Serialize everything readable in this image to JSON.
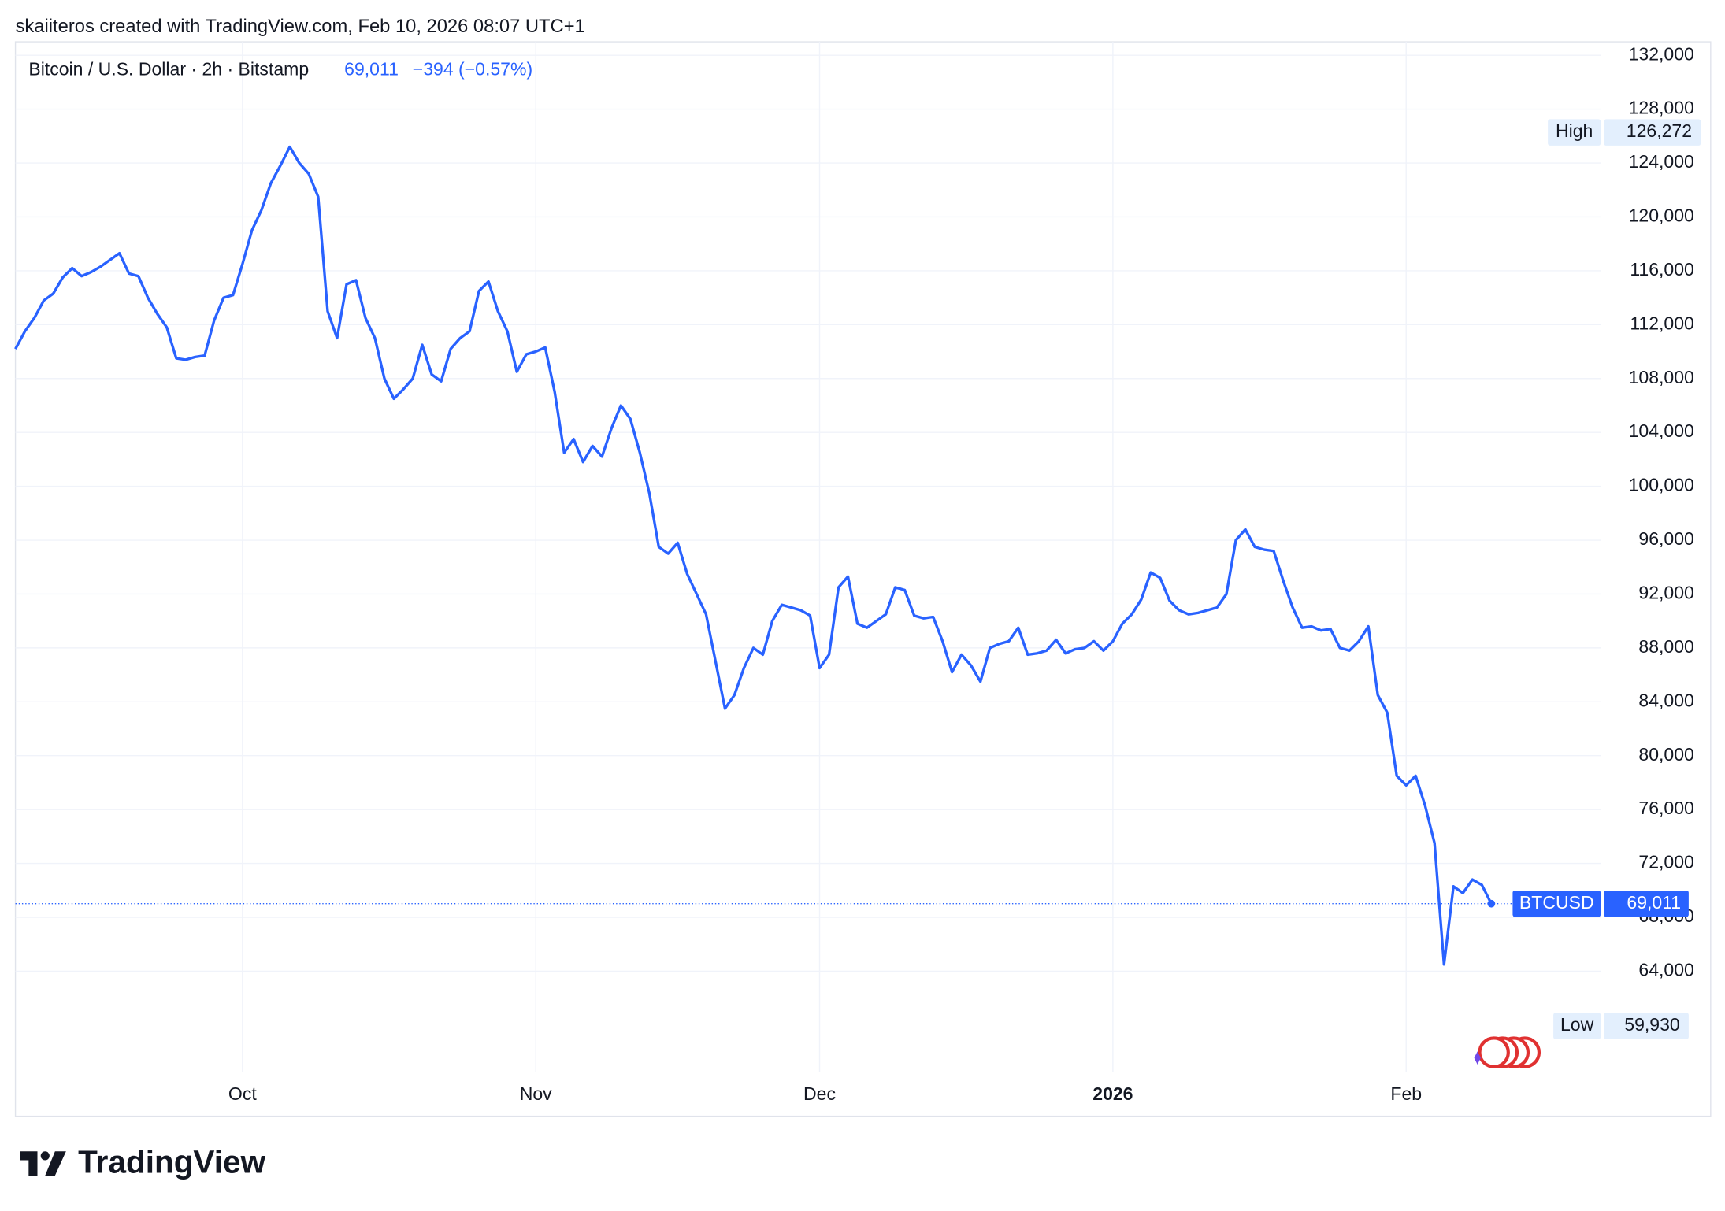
{
  "chart_data": {
    "type": "line",
    "attribution": "skaiiteros created with TradingView.com, Feb 10, 2026 08:07 UTC+1",
    "title": "Bitcoin / U.S. Dollar · 2h · Bitstamp",
    "change": "−394 (−0.57%)",
    "watermark": "TradingView",
    "last": {
      "name": "BTCUSD",
      "value": 69011,
      "label": "69,011"
    },
    "high": {
      "name": "High",
      "value": 126272,
      "label": "126,272"
    },
    "low": {
      "name": "Low",
      "value": 59930,
      "label": "59,930"
    },
    "categories": [
      null,
      null,
      null,
      null,
      null,
      null,
      null,
      null,
      null,
      null,
      null,
      null,
      null,
      null,
      null,
      null,
      null,
      null,
      null,
      null,
      null,
      null,
      null,
      null,
      "Oct",
      null,
      null,
      null,
      null,
      null,
      null,
      null,
      null,
      null,
      null,
      null,
      null,
      null,
      null,
      null,
      null,
      null,
      null,
      null,
      null,
      null,
      null,
      null,
      null,
      null,
      null,
      null,
      null,
      null,
      null,
      "Nov",
      null,
      null,
      null,
      null,
      null,
      null,
      null,
      null,
      null,
      null,
      null,
      null,
      null,
      null,
      null,
      null,
      null,
      null,
      null,
      null,
      null,
      null,
      null,
      null,
      null,
      null,
      null,
      null,
      null,
      "Dec",
      null,
      null,
      null,
      null,
      null,
      null,
      null,
      null,
      null,
      null,
      null,
      null,
      null,
      null,
      null,
      null,
      null,
      null,
      null,
      null,
      null,
      null,
      null,
      null,
      null,
      null,
      null,
      null,
      null,
      null,
      "2026",
      null,
      null,
      null,
      null,
      null,
      null,
      null,
      null,
      null,
      null,
      null,
      null,
      null,
      null,
      null,
      null,
      null,
      null,
      null,
      null,
      null,
      null,
      null,
      null,
      null,
      null,
      null,
      null,
      null,
      null,
      "Feb",
      null,
      null,
      null,
      null,
      null,
      null,
      null,
      null,
      null
    ],
    "series": [
      {
        "name": "BTCUSD",
        "color": "#2962ff",
        "values": [
          110200,
          111500,
          112500,
          113800,
          114300,
          115500,
          116200,
          115600,
          115900,
          116300,
          116800,
          117300,
          115800,
          115600,
          114000,
          112800,
          111800,
          109500,
          109400,
          109600,
          109700,
          112300,
          114000,
          114200,
          116500,
          119000,
          120500,
          122500,
          123800,
          125200,
          124000,
          123200,
          121500,
          113000,
          111000,
          115000,
          115300,
          112500,
          111000,
          108000,
          106500,
          107200,
          108000,
          110500,
          108300,
          107800,
          110200,
          111000,
          111500,
          114500,
          115200,
          113000,
          111500,
          108500,
          109800,
          110000,
          110300,
          107000,
          102500,
          103500,
          101800,
          103000,
          102200,
          104300,
          106000,
          105000,
          102500,
          99500,
          95500,
          95000,
          95800,
          93500,
          92000,
          90500,
          87000,
          83500,
          84500,
          86500,
          88000,
          87500,
          90000,
          91200,
          91000,
          90800,
          90400,
          86500,
          87500,
          92500,
          93300,
          89800,
          89500,
          90000,
          90500,
          92500,
          92300,
          90400,
          90200,
          90300,
          88500,
          86200,
          87500,
          86700,
          85500,
          88000,
          88300,
          88500,
          89500,
          87500,
          87600,
          87800,
          88600,
          87600,
          87900,
          88000,
          88500,
          87800,
          88500,
          89800,
          90500,
          91600,
          93600,
          93200,
          91500,
          90800,
          90500,
          90600,
          90800,
          91000,
          92000,
          96000,
          96800,
          95500,
          95300,
          95200,
          93000,
          91000,
          89500,
          89600,
          89300,
          89400,
          88000,
          87800,
          88500,
          89600,
          84500,
          83200,
          78500,
          77800,
          78500,
          76300,
          73500,
          64500,
          70300,
          69800,
          70800,
          70400,
          69011
        ]
      }
    ],
    "ylim": [
      56500,
      133000
    ],
    "yticks": [
      {
        "value": 64000,
        "label": "64,000"
      },
      {
        "value": 68000,
        "label": "68,000"
      },
      {
        "value": 72000,
        "label": "72,000"
      },
      {
        "value": 76000,
        "label": "76,000"
      },
      {
        "value": 80000,
        "label": "80,000"
      },
      {
        "value": 84000,
        "label": "84,000"
      },
      {
        "value": 88000,
        "label": "88,000"
      },
      {
        "value": 92000,
        "label": "92,000"
      },
      {
        "value": 96000,
        "label": "96,000"
      },
      {
        "value": 100000,
        "label": "100,000"
      },
      {
        "value": 104000,
        "label": "104,000"
      },
      {
        "value": 108000,
        "label": "108,000"
      },
      {
        "value": 112000,
        "label": "112,000"
      },
      {
        "value": 116000,
        "label": "116,000"
      },
      {
        "value": 120000,
        "label": "120,000"
      },
      {
        "value": 124000,
        "label": "124,000"
      },
      {
        "value": 128000,
        "label": "128,000"
      },
      {
        "value": 132000,
        "label": "132,000"
      }
    ],
    "grid": true
  }
}
